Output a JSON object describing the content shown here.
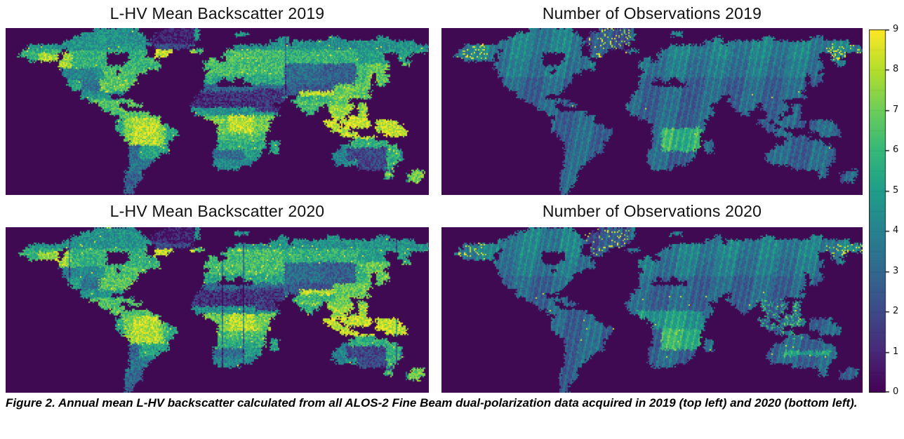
{
  "figure": {
    "panels": [
      {
        "id": "backscatter-2019",
        "title": "L-HV Mean Backscatter 2019",
        "type": "backscatter",
        "year": 2019
      },
      {
        "id": "observations-2019",
        "title": "Number of Observations 2019",
        "type": "observations",
        "year": 2019
      },
      {
        "id": "backscatter-2020",
        "title": "L-HV Mean Backscatter 2020",
        "type": "backscatter",
        "year": 2020
      },
      {
        "id": "observations-2020",
        "title": "Number of Observations 2020",
        "type": "observations",
        "year": 2020
      }
    ],
    "caption": "Figure 2. Annual mean L-HV backscatter calculated from all ALOS-2 Fine Beam dual-polarization data acquired in 2019 (top left) and 2020 (bottom left)."
  },
  "colorbar": {
    "min": 0,
    "max": 9,
    "tick_labels": [
      "9",
      "8",
      "7",
      "6",
      "5",
      "4",
      "3",
      "2",
      "1",
      "0"
    ],
    "colormap": "viridis"
  },
  "colors": {
    "ocean": "#400a52",
    "viridis_stops": [
      [
        68,
        1,
        84
      ],
      [
        72,
        40,
        120
      ],
      [
        62,
        74,
        137
      ],
      [
        49,
        104,
        142
      ],
      [
        38,
        130,
        142
      ],
      [
        31,
        158,
        137
      ],
      [
        53,
        183,
        121
      ],
      [
        109,
        205,
        89
      ],
      [
        180,
        222,
        44
      ],
      [
        253,
        231,
        37
      ]
    ]
  },
  "chart_data": [
    {
      "type": "heatmap",
      "title": "L-HV Mean Backscatter 2019",
      "projection": "world equirectangular",
      "legend_position": "none"
    },
    {
      "type": "heatmap",
      "title": "Number of Observations 2019",
      "projection": "world equirectangular",
      "legend_position": "right colorbar",
      "value_range": [
        0,
        9
      ]
    },
    {
      "type": "heatmap",
      "title": "L-HV Mean Backscatter 2020",
      "projection": "world equirectangular",
      "legend_position": "none"
    },
    {
      "type": "heatmap",
      "title": "Number of Observations 2020",
      "projection": "world equirectangular",
      "legend_position": "right colorbar",
      "value_range": [
        0,
        9
      ]
    }
  ],
  "world_land_segments": [
    [
      [
        20,
        29
      ],
      [
        36,
        43
      ]
    ],
    [
      [
        17,
        30
      ],
      [
        34,
        43
      ],
      [
        52,
        54
      ]
    ],
    [
      [
        15,
        31
      ],
      [
        33,
        43
      ],
      [
        62,
        63
      ],
      [
        73,
        75
      ],
      [
        84,
        86
      ]
    ],
    [
      [
        13,
        32
      ],
      [
        33,
        42
      ],
      [
        60,
        63
      ],
      [
        65,
        92
      ]
    ],
    [
      [
        5,
        31
      ],
      [
        34,
        41
      ],
      [
        52,
        57
      ],
      [
        58,
        95
      ]
    ],
    [
      [
        4,
        12
      ],
      [
        14,
        31
      ],
      [
        34,
        37
      ],
      [
        42,
        44
      ],
      [
        50,
        95
      ]
    ],
    [
      [
        3,
        11
      ],
      [
        13,
        22
      ],
      [
        28,
        31
      ],
      [
        34,
        36
      ],
      [
        49,
        85
      ],
      [
        89,
        91
      ]
    ],
    [
      [
        5,
        11
      ],
      [
        13,
        22
      ],
      [
        28,
        33
      ],
      [
        46,
        47
      ],
      [
        50,
        85
      ],
      [
        89,
        90
      ]
    ],
    [
      [
        12,
        22
      ],
      [
        27,
        34
      ],
      [
        45,
        86
      ],
      [
        90,
        91
      ]
    ],
    [
      [
        12,
        34
      ],
      [
        45,
        86
      ]
    ],
    [
      [
        13,
        24
      ],
      [
        26,
        31
      ],
      [
        46,
        85
      ]
    ],
    [
      [
        13,
        29
      ],
      [
        45,
        82
      ],
      [
        84,
        86
      ]
    ],
    [
      [
        14,
        29
      ],
      [
        45,
        48
      ],
      [
        50,
        51
      ],
      [
        54,
        82
      ],
      [
        84,
        86
      ]
    ],
    [
      [
        14,
        28
      ],
      [
        45,
        47
      ],
      [
        56,
        82
      ],
      [
        84,
        85
      ]
    ],
    [
      [
        15,
        27
      ],
      [
        45,
        82
      ]
    ],
    [
      [
        17,
        24
      ],
      [
        25,
        26
      ],
      [
        44,
        81
      ]
    ],
    [
      [
        17,
        23
      ],
      [
        43,
        63
      ],
      [
        66,
        82
      ]
    ],
    [
      [
        19,
        25
      ],
      [
        26,
        28
      ],
      [
        43,
        62
      ],
      [
        65,
        77
      ]
    ],
    [
      [
        21,
        25
      ],
      [
        28,
        30
      ],
      [
        42,
        60
      ],
      [
        66,
        71
      ],
      [
        73,
        78
      ],
      [
        80,
        81
      ]
    ],
    [
      [
        22,
        26
      ],
      [
        42,
        61
      ],
      [
        67,
        70
      ],
      [
        73,
        78
      ],
      [
        80,
        81
      ]
    ],
    [
      [
        24,
        32
      ],
      [
        43,
        61
      ],
      [
        68,
        69
      ],
      [
        74,
        77
      ],
      [
        80,
        81
      ]
    ],
    [
      [
        26,
        34
      ],
      [
        45,
        60
      ],
      [
        74,
        76
      ],
      [
        78,
        81
      ]
    ],
    [
      [
        25,
        34
      ],
      [
        47,
        59
      ],
      [
        72,
        74
      ],
      [
        76,
        80
      ],
      [
        81,
        82
      ],
      [
        84,
        88
      ]
    ],
    [
      [
        25,
        36
      ],
      [
        48,
        59
      ],
      [
        73,
        75
      ],
      [
        77,
        80
      ],
      [
        81,
        82
      ],
      [
        84,
        89
      ]
    ],
    [
      [
        25,
        38
      ],
      [
        48,
        59
      ],
      [
        74,
        77
      ],
      [
        84,
        90
      ]
    ],
    [
      [
        26,
        38
      ],
      [
        48,
        58
      ],
      [
        76,
        79
      ],
      [
        86,
        90
      ]
    ],
    [
      [
        27,
        37
      ],
      [
        48,
        58
      ],
      [
        79,
        80
      ],
      [
        81,
        83
      ]
    ],
    [
      [
        28,
        36
      ],
      [
        48,
        58
      ],
      [
        60,
        61
      ],
      [
        78,
        86
      ]
    ],
    [
      [
        28,
        36
      ],
      [
        48,
        58
      ],
      [
        60,
        61
      ],
      [
        76,
        88
      ]
    ],
    [
      [
        28,
        36
      ],
      [
        47,
        57
      ],
      [
        60,
        61
      ],
      [
        75,
        89
      ]
    ],
    [
      [
        28,
        34
      ],
      [
        47,
        57
      ],
      [
        74,
        89
      ]
    ],
    [
      [
        28,
        33
      ],
      [
        47,
        56
      ],
      [
        74,
        89
      ]
    ],
    [
      [
        28,
        32
      ],
      [
        47,
        55
      ],
      [
        75,
        88
      ]
    ],
    [
      [
        28,
        31
      ],
      [
        48,
        52
      ],
      [
        80,
        87
      ]
    ],
    [
      [
        27,
        30
      ],
      [
        86,
        87
      ],
      [
        92,
        94
      ]
    ],
    [
      [
        27,
        30
      ],
      [
        86,
        87
      ],
      [
        91,
        94
      ]
    ],
    [
      [
        27,
        30
      ],
      [
        91,
        93
      ]
    ],
    [
      [
        27,
        29
      ]
    ],
    [
      [
        27,
        28
      ]
    ],
    [
      [
        27,
        28
      ]
    ]
  ]
}
